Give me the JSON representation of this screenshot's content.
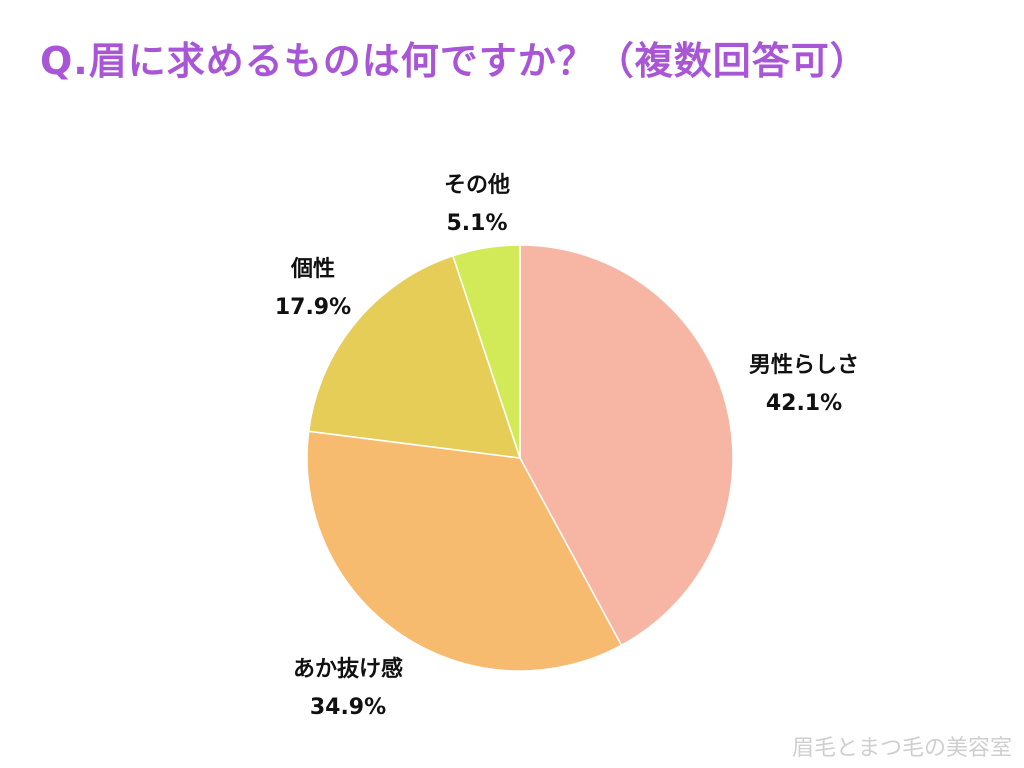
{
  "header": {
    "title": "Q.眉に求めるものは何ですか？（複数回答可）"
  },
  "chart_data": {
    "type": "pie",
    "title": "Q.眉に求めるものは何ですか？（複数回答可）",
    "categories": [
      "男性らしさ",
      "あか抜け感",
      "個性",
      "その他"
    ],
    "values": [
      42.1,
      34.9,
      17.9,
      5.1
    ],
    "value_labels": [
      "42.1%",
      "34.9%",
      "17.9%",
      "5.1%"
    ],
    "colors": [
      "#f7b6a3",
      "#f6bb6f",
      "#e5cd58",
      "#d3ea58"
    ],
    "start_angle_deg": 0,
    "direction": "clockwise",
    "legend": "none"
  },
  "footer": {
    "watermark": "眉毛とまつ毛の美容室"
  }
}
